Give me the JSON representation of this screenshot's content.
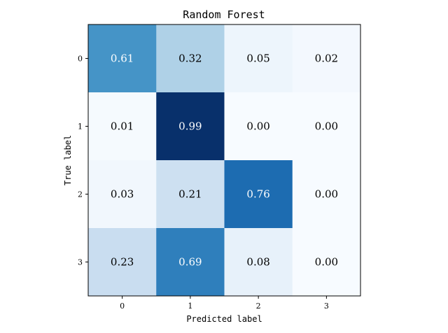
{
  "chart_data": {
    "type": "heatmap",
    "title": "Random Forest",
    "xlabel": "Predicted label",
    "ylabel": "True label",
    "x_categories": [
      "0",
      "1",
      "2",
      "3"
    ],
    "y_categories": [
      "0",
      "1",
      "2",
      "3"
    ],
    "values": [
      [
        0.61,
        0.32,
        0.05,
        0.02
      ],
      [
        0.01,
        0.99,
        0.0,
        0.0
      ],
      [
        0.03,
        0.21,
        0.76,
        0.0
      ],
      [
        0.23,
        0.69,
        0.08,
        0.0
      ]
    ],
    "colormap": "Blues",
    "color_range": [
      0,
      0.99
    ],
    "text_color_dark": "#000000",
    "text_color_light": "#ffffff"
  }
}
